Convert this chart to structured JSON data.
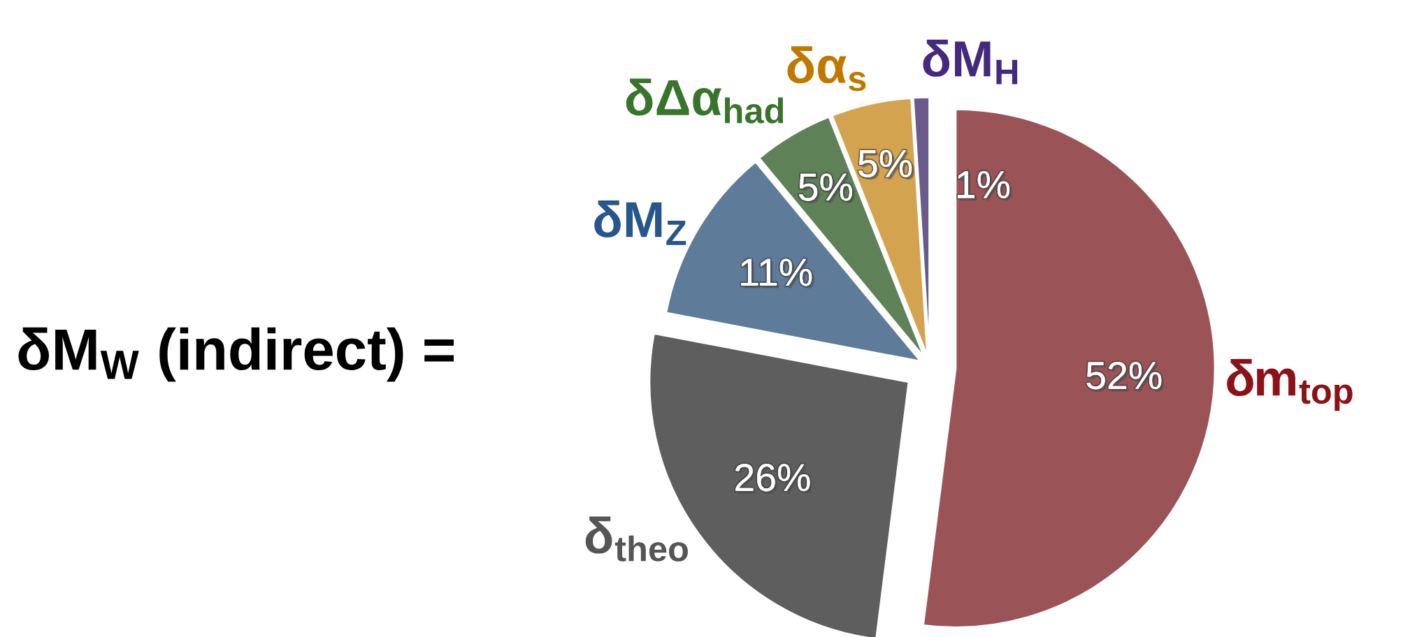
{
  "chart_data": {
    "type": "pie",
    "title": "δM$_{W}$ (indirect) =",
    "categories": [
      "δm$_{top}$",
      "δ$_{theo}$",
      "δM$_{Z}$",
      "δΔα$_{had}$",
      "δα$_{s}$",
      "δM$_{H}$"
    ],
    "values": [
      52,
      26,
      11,
      5,
      5,
      1
    ],
    "colors": [
      "#9a5457",
      "#5e5e5e",
      "#5f7b9a",
      "#5e8157",
      "#d4a34f",
      "#6a5b8c"
    ],
    "value_labels": [
      "52%",
      "26%",
      "11%",
      "5%",
      "5%",
      "1%"
    ]
  }
}
